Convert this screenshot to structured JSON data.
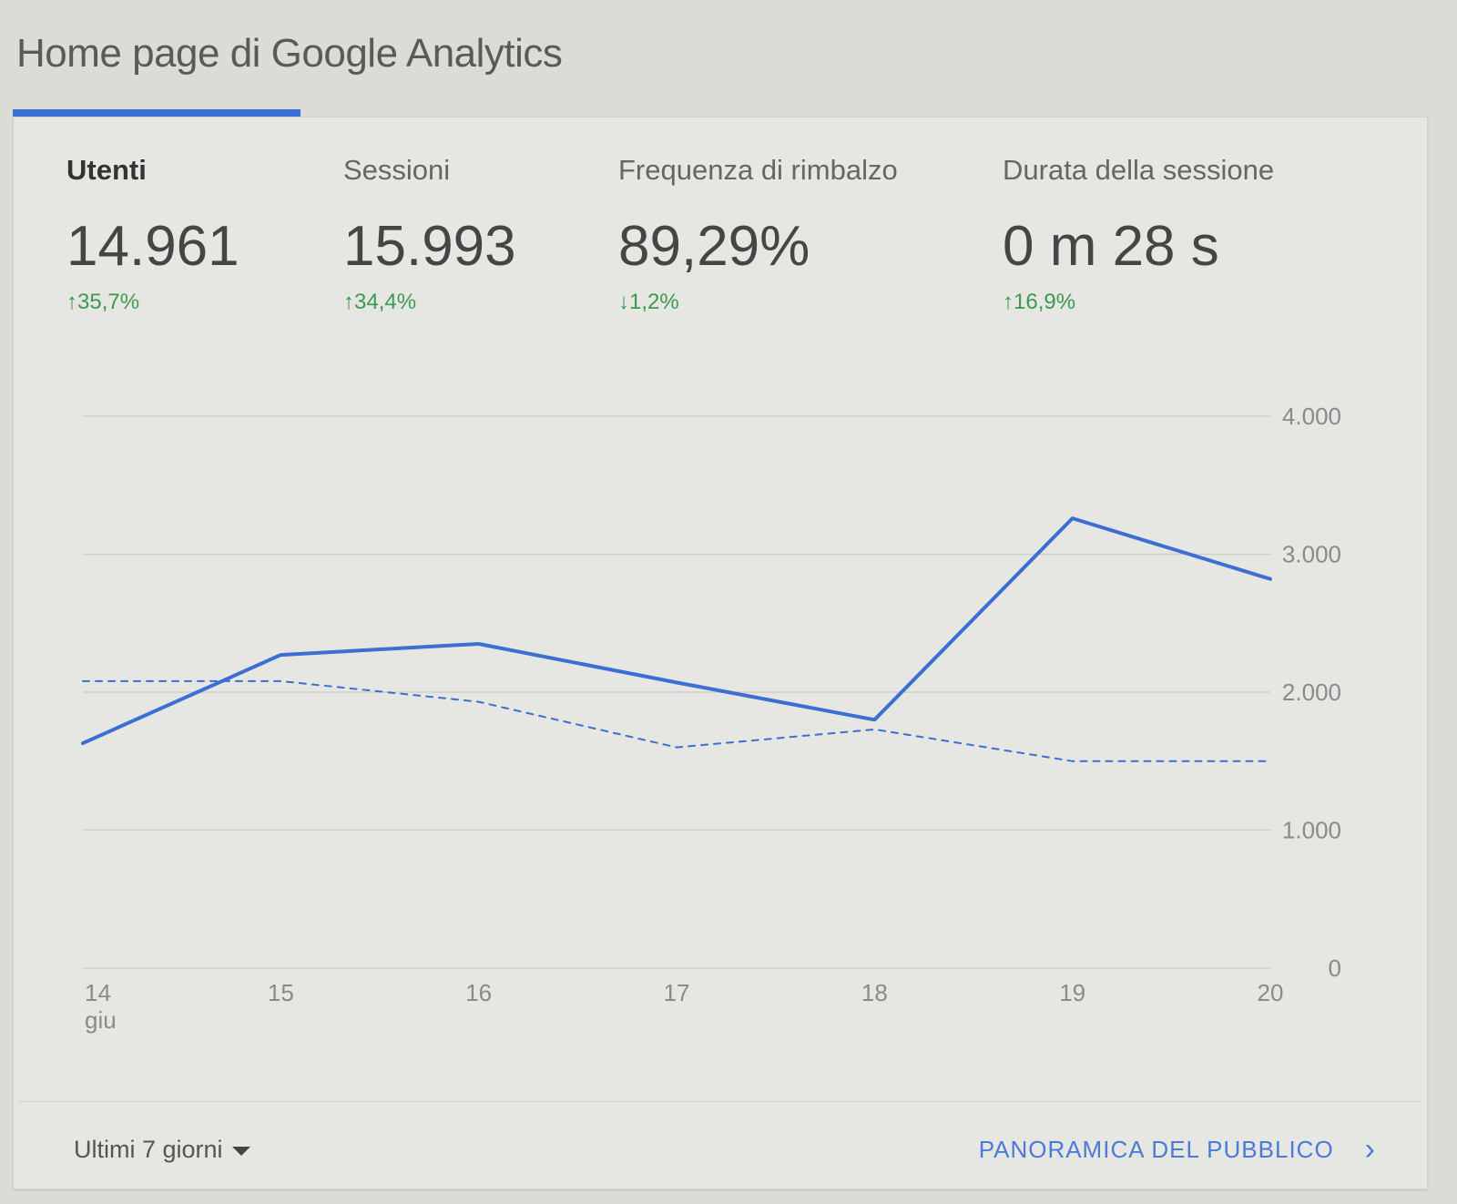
{
  "page_title": "Home page di Google Analytics",
  "metrics": [
    {
      "label": "Utenti",
      "value": "14.961",
      "change": "35,7%",
      "direction": "up",
      "active": true
    },
    {
      "label": "Sessioni",
      "value": "15.993",
      "change": "34,4%",
      "direction": "up",
      "active": false
    },
    {
      "label": "Frequenza di rimbalzo",
      "value": "89,29%",
      "change": "1,2%",
      "direction": "down",
      "active": false
    },
    {
      "label": "Durata della sessione",
      "value": "0 m 28 s",
      "change": "16,9%",
      "direction": "up",
      "active": false
    }
  ],
  "change_color": "#3a9a4d",
  "accent_color": "#3b6fd4",
  "chart_data": {
    "type": "line",
    "categories": [
      "14",
      "15",
      "16",
      "17",
      "18",
      "19",
      "20"
    ],
    "x_sublabel_first": "giu",
    "ylim": [
      0,
      4000
    ],
    "yticks": [
      "4.000",
      "3.000",
      "2.000",
      "1.000",
      "0"
    ],
    "grid": true,
    "series": [
      {
        "style": "solid",
        "color": "#3b6fd4",
        "values": [
          1630,
          2270,
          2350,
          2070,
          1800,
          3260,
          2820
        ]
      },
      {
        "style": "dashed",
        "color": "#3b6fd4",
        "values": [
          2080,
          2080,
          1930,
          1600,
          1730,
          1500,
          1500
        ]
      }
    ]
  },
  "footer": {
    "date_range": "Ultimi 7 giorni",
    "audience_link": "PANORAMICA DEL PUBBLICO"
  }
}
